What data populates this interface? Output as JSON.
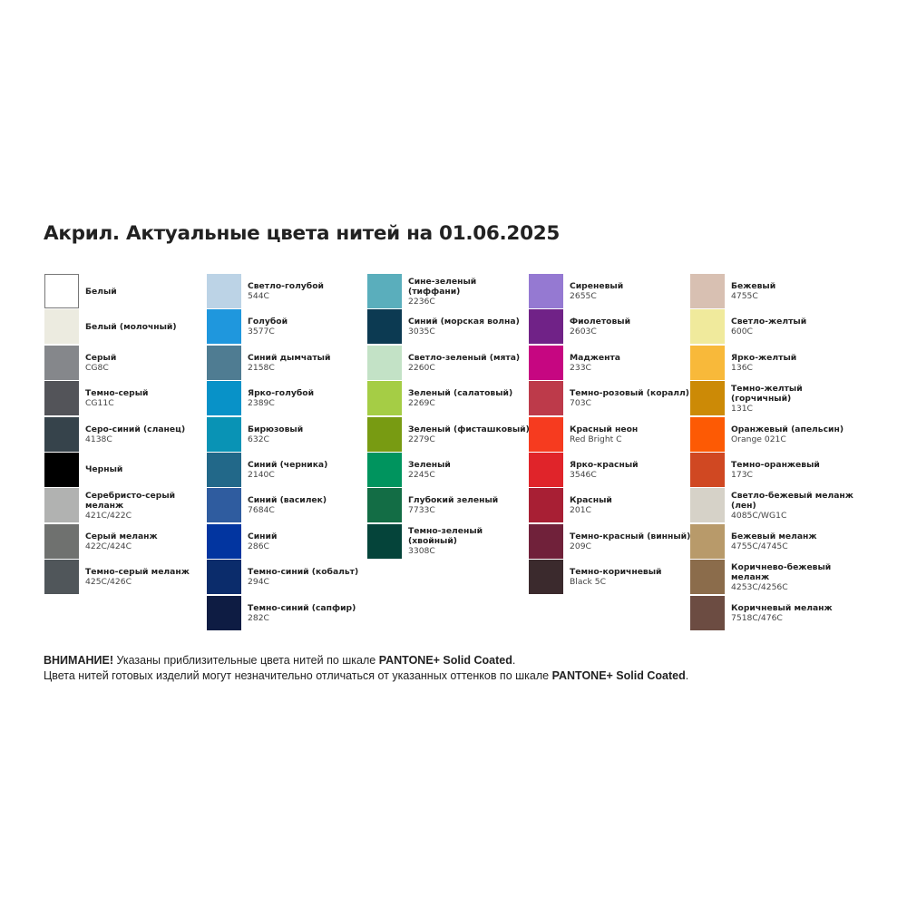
{
  "title": "Акрил. Актуальные цвета нитей на 01.06.2025",
  "columns": [
    [
      {
        "name": "Белый",
        "code": "",
        "color": "#ffffff"
      },
      {
        "name": "Белый (молочный)",
        "code": "",
        "color": "#ecebe0"
      },
      {
        "name": "Серый",
        "code": "CG8C",
        "color": "#85878b"
      },
      {
        "name": "Темно-серый",
        "code": "CG11C",
        "color": "#535459"
      },
      {
        "name": "Серо-синий (сланец)",
        "code": "4138C",
        "color": "#36434b"
      },
      {
        "name": "Черный",
        "code": "",
        "color": "#000000"
      },
      {
        "name": "Серебристо-серый меланж",
        "code": "421C/422C",
        "color": "#b1b2b1"
      },
      {
        "name": "Серый меланж",
        "code": "422C/424C",
        "color": "#6f716f"
      },
      {
        "name": "Темно-серый меланж",
        "code": "425C/426C",
        "color": "#50565a"
      }
    ],
    [
      {
        "name": "Светло-голубой",
        "code": "544C",
        "color": "#bcd3e6"
      },
      {
        "name": "Голубой",
        "code": "3577C",
        "color": "#1f97dd"
      },
      {
        "name": "Синий дымчатый",
        "code": "2158C",
        "color": "#4f7c92"
      },
      {
        "name": "Ярко-голубой",
        "code": "2389C",
        "color": "#0892c8"
      },
      {
        "name": "Бирюзовый",
        "code": "632C",
        "color": "#0993b5"
      },
      {
        "name": "Синий (черника)",
        "code": "2140C",
        "color": "#226889"
      },
      {
        "name": "Синий (василек)",
        "code": "7684C",
        "color": "#2f5c9f"
      },
      {
        "name": "Синий",
        "code": "286C",
        "color": "#0235a0"
      },
      {
        "name": "Темно-синий (кобальт)",
        "code": "294C",
        "color": "#0b2c6b"
      },
      {
        "name": "Темно-синий (сапфир)",
        "code": "282C",
        "color": "#0e1c43"
      }
    ],
    [
      {
        "name": "Сине-зеленый (тиффани)",
        "code": "2236C",
        "color": "#5aaebc"
      },
      {
        "name": "Синий (морская волна)",
        "code": "3035C",
        "color": "#0c3a52"
      },
      {
        "name": "Светло-зеленый (мята)",
        "code": "2260C",
        "color": "#c3e2c6"
      },
      {
        "name": "Зеленый (салатовый)",
        "code": "2269C",
        "color": "#a5cd45"
      },
      {
        "name": "Зеленый (фисташковый)",
        "code": "2279C",
        "color": "#789b12"
      },
      {
        "name": "Зеленый",
        "code": "2245C",
        "color": "#00945e"
      },
      {
        "name": "Глубокий зеленый",
        "code": "7733C",
        "color": "#136d45"
      },
      {
        "name": "Темно-зеленый (хвойный)",
        "code": "3308C",
        "color": "#05443a"
      }
    ],
    [
      {
        "name": "Сиреневый",
        "code": "2655C",
        "color": "#9579d2"
      },
      {
        "name": "Фиолетовый",
        "code": "2603C",
        "color": "#702287"
      },
      {
        "name": "Маджента",
        "code": "233C",
        "color": "#c60681"
      },
      {
        "name": "Темно-розовый (коралл)",
        "code": "703C",
        "color": "#bd3a4a"
      },
      {
        "name": "Красный неон",
        "code": "Red Bright C",
        "color": "#f63b1f"
      },
      {
        "name": "Ярко-красный",
        "code": "3546C",
        "color": "#e0242a"
      },
      {
        "name": "Красный",
        "code": "201C",
        "color": "#a81f34"
      },
      {
        "name": "Темно-красный (винный)",
        "code": "209C",
        "color": "#70213a"
      },
      {
        "name": "Темно-коричневый",
        "code": "Black 5C",
        "color": "#3b2a2d"
      }
    ],
    [
      {
        "name": "Бежевый",
        "code": "4755C",
        "color": "#d8c0b2"
      },
      {
        "name": "Светло-желтый",
        "code": "600C",
        "color": "#f0ea9c"
      },
      {
        "name": "Ярко-желтый",
        "code": "136C",
        "color": "#f8b93a"
      },
      {
        "name": "Темно-желтый (горчичный)",
        "code": "131C",
        "color": "#cc8a06"
      },
      {
        "name": "Оранжевый (апельсин)",
        "code": "Orange 021C",
        "color": "#fd5a04"
      },
      {
        "name": "Темно-оранжевый",
        "code": "173C",
        "color": "#d04822"
      },
      {
        "name": "Светло-бежевый меланж (лен)",
        "code": "4085C/WG1C",
        "color": "#d6d2c8"
      },
      {
        "name": "Бежевый меланж",
        "code": "4755C/4745C",
        "color": "#b89a6a"
      },
      {
        "name": "Коричнево-бежевый меланж",
        "code": "4253C/4256C",
        "color": "#8b6c4b"
      },
      {
        "name": "Коричневый меланж",
        "code": "7518C/476C",
        "color": "#6c4c42"
      }
    ]
  ],
  "notes": {
    "line1_bold": "ВНИМАНИЕ!",
    "line1_text": " Указаны приблизительные цвета нитей по шкале ",
    "line1_brand": "PANTONE+ Solid Coated",
    "line1_end": ".",
    "line2_text": "Цвета нитей готовых изделий могут незначительно отличаться от указанных оттенков по шкале ",
    "line2_brand": "PANTONE+ Solid Coated",
    "line2_end": "."
  }
}
